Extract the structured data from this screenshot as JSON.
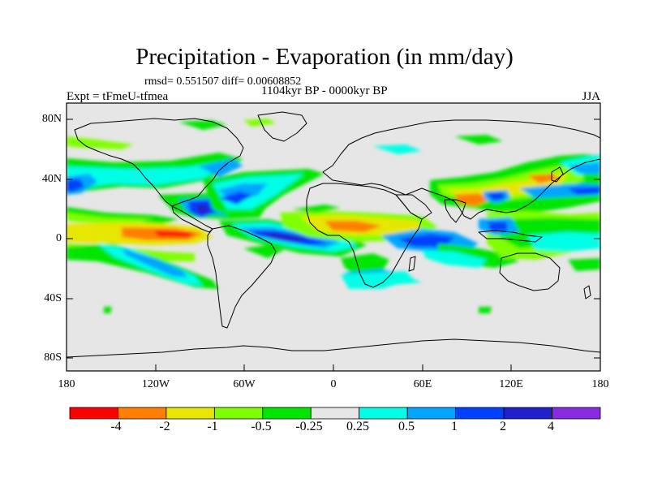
{
  "title": "Precipitation - Evaporation (in mm/day)",
  "stats": "rmsd= 0.551507 diff= 0.00608852",
  "experiment": "Expt = tFmeU-tfmea",
  "period": "1104kyr BP - 0000kyr BP",
  "season": "JJA",
  "lat_labels": [
    "80N",
    "40N",
    "0",
    "40S",
    "80S"
  ],
  "lon_labels": [
    "180",
    "120W",
    "60W",
    "0",
    "60E",
    "120E",
    "180"
  ],
  "colorbar": {
    "labels": [
      "-4",
      "-2",
      "-1",
      "-0.5",
      "-0.25",
      "0.25",
      "0.5",
      "1",
      "2",
      "4"
    ],
    "colors": [
      "#ff0000",
      "#ff8000",
      "#e6e600",
      "#80ff00",
      "#00e600",
      "#e6e6e6",
      "#00ffe6",
      "#00a6ff",
      "#0040ff",
      "#2020c8",
      "#8a2be2"
    ]
  },
  "colors": {
    "map_background": "#e6e6e6",
    "coast": "#000000"
  }
}
